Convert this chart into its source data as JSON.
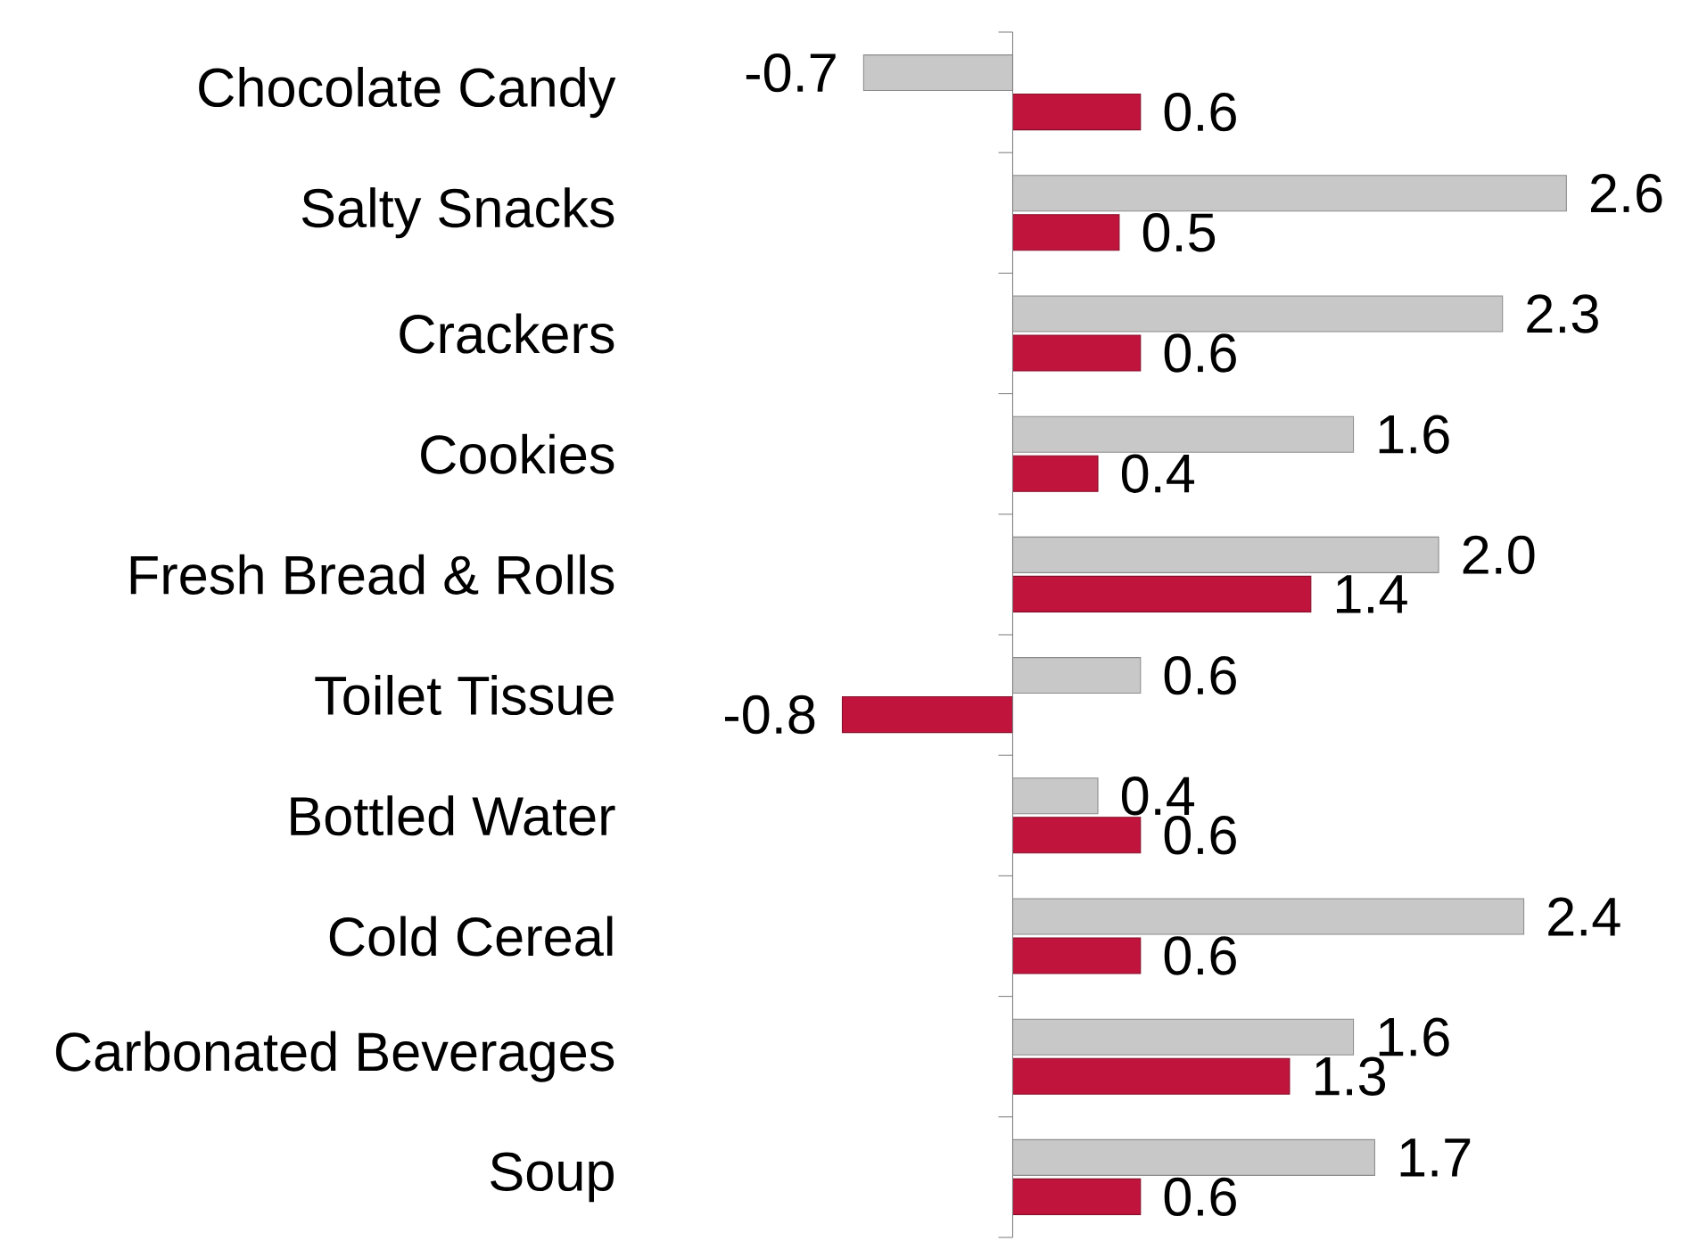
{
  "chart_data": {
    "type": "bar",
    "orientation": "horizontal",
    "categories": [
      "Chocolate Candy",
      "Salty Snacks",
      "Crackers",
      "Cookies",
      "Fresh Bread & Rolls",
      "Toilet Tissue",
      "Bottled Water",
      "Cold Cereal",
      "Carbonated Beverages",
      "Soup"
    ],
    "series": [
      {
        "color": "#c8c8c8",
        "values": [
          -0.7,
          2.6,
          2.3,
          1.6,
          2.0,
          0.6,
          0.4,
          2.4,
          1.6,
          1.7
        ],
        "value_labels": [
          "-0.7",
          "2.6",
          "2.3",
          "1.6",
          "2.0",
          "0.6",
          "0.4",
          "2.4",
          "1.6",
          "1.7"
        ]
      },
      {
        "color": "#c0143c",
        "values": [
          0.6,
          0.5,
          0.6,
          0.4,
          1.4,
          -0.8,
          0.6,
          0.6,
          1.3,
          0.6
        ],
        "value_labels": [
          "0.6",
          "0.5",
          "0.6",
          "0.4",
          "1.4",
          "-0.8",
          "0.6",
          "0.6",
          "1.3",
          "0.6"
        ]
      }
    ]
  }
}
